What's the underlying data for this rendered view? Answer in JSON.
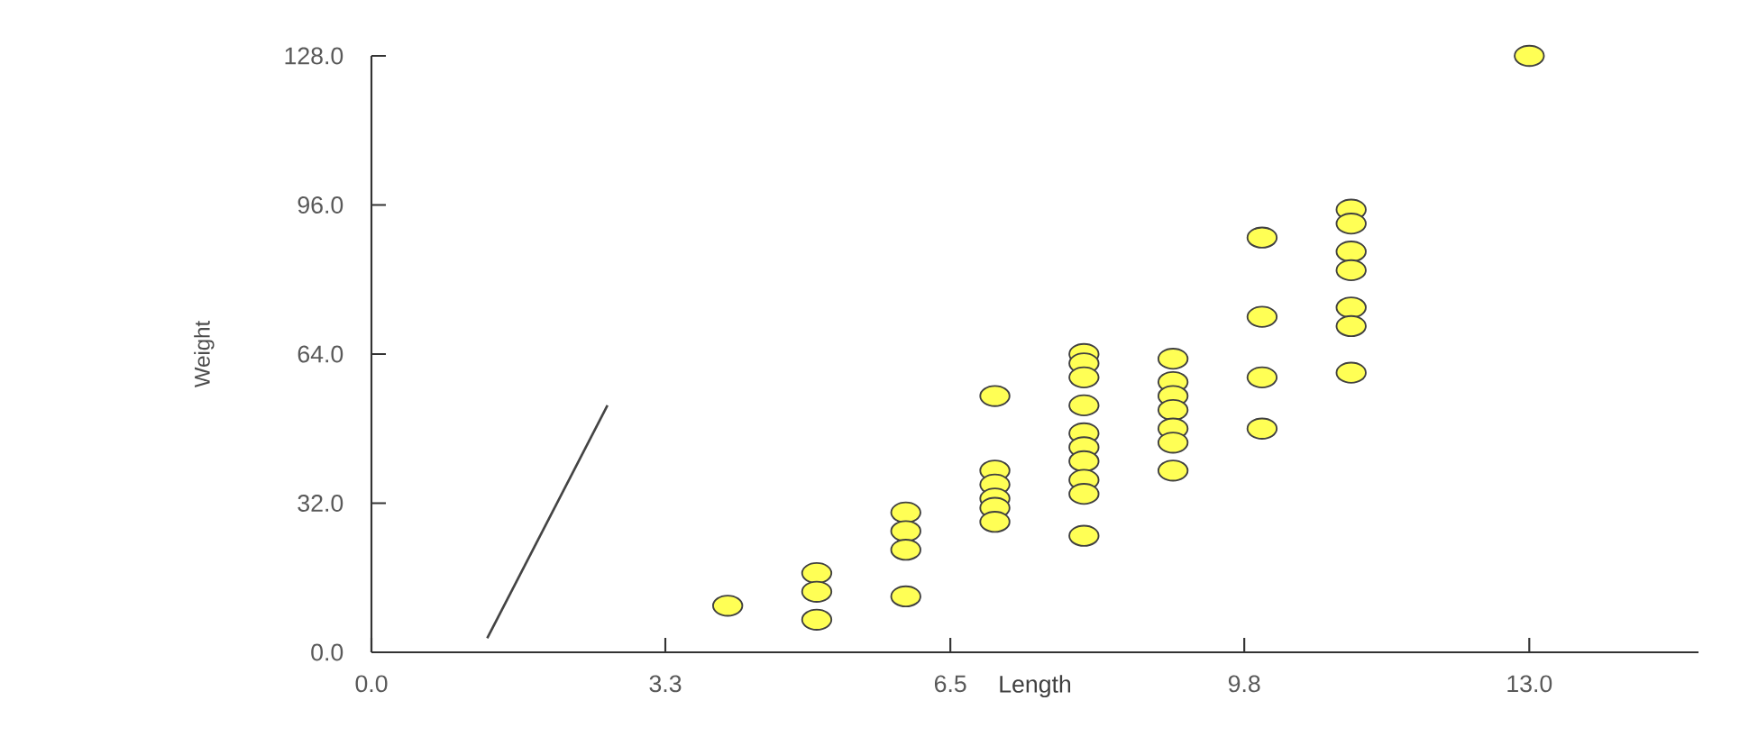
{
  "chart_data": {
    "type": "scatter",
    "xlabel": "Length",
    "ylabel": "Weight",
    "xlim": [
      0,
      14.9
    ],
    "ylim": [
      0,
      128
    ],
    "xticks": [
      {
        "value": 0,
        "label": "0.0"
      },
      3.3,
      6.5,
      9.8,
      {
        "value": 13,
        "label": "13.0"
      }
    ],
    "yticks": [
      {
        "value": 0,
        "label": "0.0"
      },
      {
        "value": 32,
        "label": "32.0"
      },
      {
        "value": 64,
        "label": "64.0"
      },
      {
        "value": 96,
        "label": "96.0"
      },
      {
        "value": 128,
        "label": "128.0"
      }
    ],
    "series": [
      {
        "marker": "circle",
        "color": "#ffff55",
        "x": [
          4,
          5,
          5,
          5,
          6,
          6,
          6,
          6,
          7,
          7,
          7,
          7,
          7,
          7,
          8,
          8,
          8,
          8,
          8,
          8,
          8,
          8,
          8,
          8,
          9,
          9,
          9,
          9,
          9,
          9,
          9,
          10,
          10,
          10,
          10,
          11,
          11,
          11,
          11,
          11,
          11,
          11,
          13
        ],
        "values": [
          10,
          17,
          13,
          7,
          30,
          26,
          22,
          12,
          55,
          39,
          36,
          33,
          31,
          28,
          64,
          62,
          59,
          53,
          47,
          44,
          41,
          37,
          34,
          25,
          63,
          58,
          55,
          52,
          48,
          45,
          39,
          89,
          72,
          59,
          48,
          95,
          92,
          86,
          82,
          74,
          70,
          60,
          128
        ]
      },
      {
        "type": "line",
        "color": "#444444",
        "x": [
          1.3,
          2.65
        ],
        "values": [
          3,
          53
        ]
      }
    ]
  }
}
